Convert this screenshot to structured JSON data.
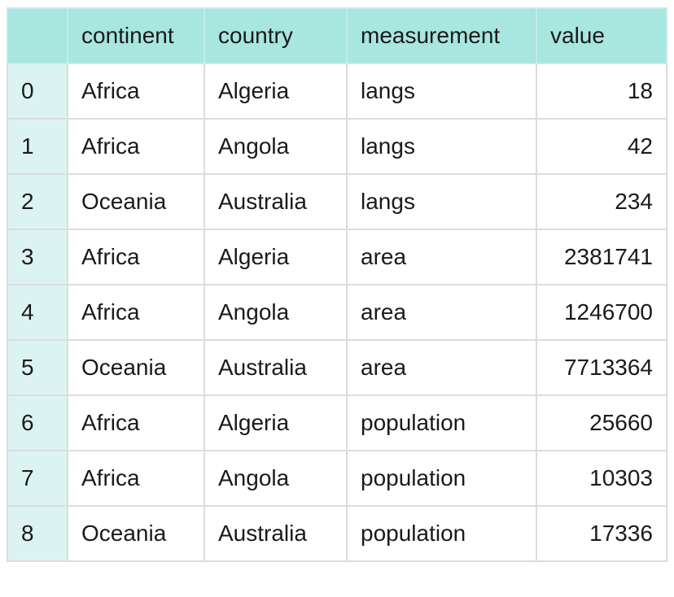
{
  "chart_data": {
    "type": "table",
    "columns": [
      "",
      "continent",
      "country",
      "measurement",
      "value"
    ],
    "rows": [
      {
        "index": "0",
        "continent": "Africa",
        "country": "Algeria",
        "measurement": "langs",
        "value": "18"
      },
      {
        "index": "1",
        "continent": "Africa",
        "country": "Angola",
        "measurement": "langs",
        "value": "42"
      },
      {
        "index": "2",
        "continent": "Oceania",
        "country": "Australia",
        "measurement": "langs",
        "value": "234"
      },
      {
        "index": "3",
        "continent": "Africa",
        "country": "Algeria",
        "measurement": "area",
        "value": "2381741"
      },
      {
        "index": "4",
        "continent": "Africa",
        "country": "Angola",
        "measurement": "area",
        "value": "1246700"
      },
      {
        "index": "5",
        "continent": "Oceania",
        "country": "Australia",
        "measurement": "area",
        "value": "7713364"
      },
      {
        "index": "6",
        "continent": "Africa",
        "country": "Algeria",
        "measurement": "population",
        "value": "25660"
      },
      {
        "index": "7",
        "continent": "Africa",
        "country": "Angola",
        "measurement": "population",
        "value": "10303"
      },
      {
        "index": "8",
        "continent": "Oceania",
        "country": "Australia",
        "measurement": "population",
        "value": "17336"
      }
    ]
  },
  "colors": {
    "header_bg": "#a8e6e0",
    "index_bg": "#dcf4f1",
    "border": "#dcdcdc"
  }
}
